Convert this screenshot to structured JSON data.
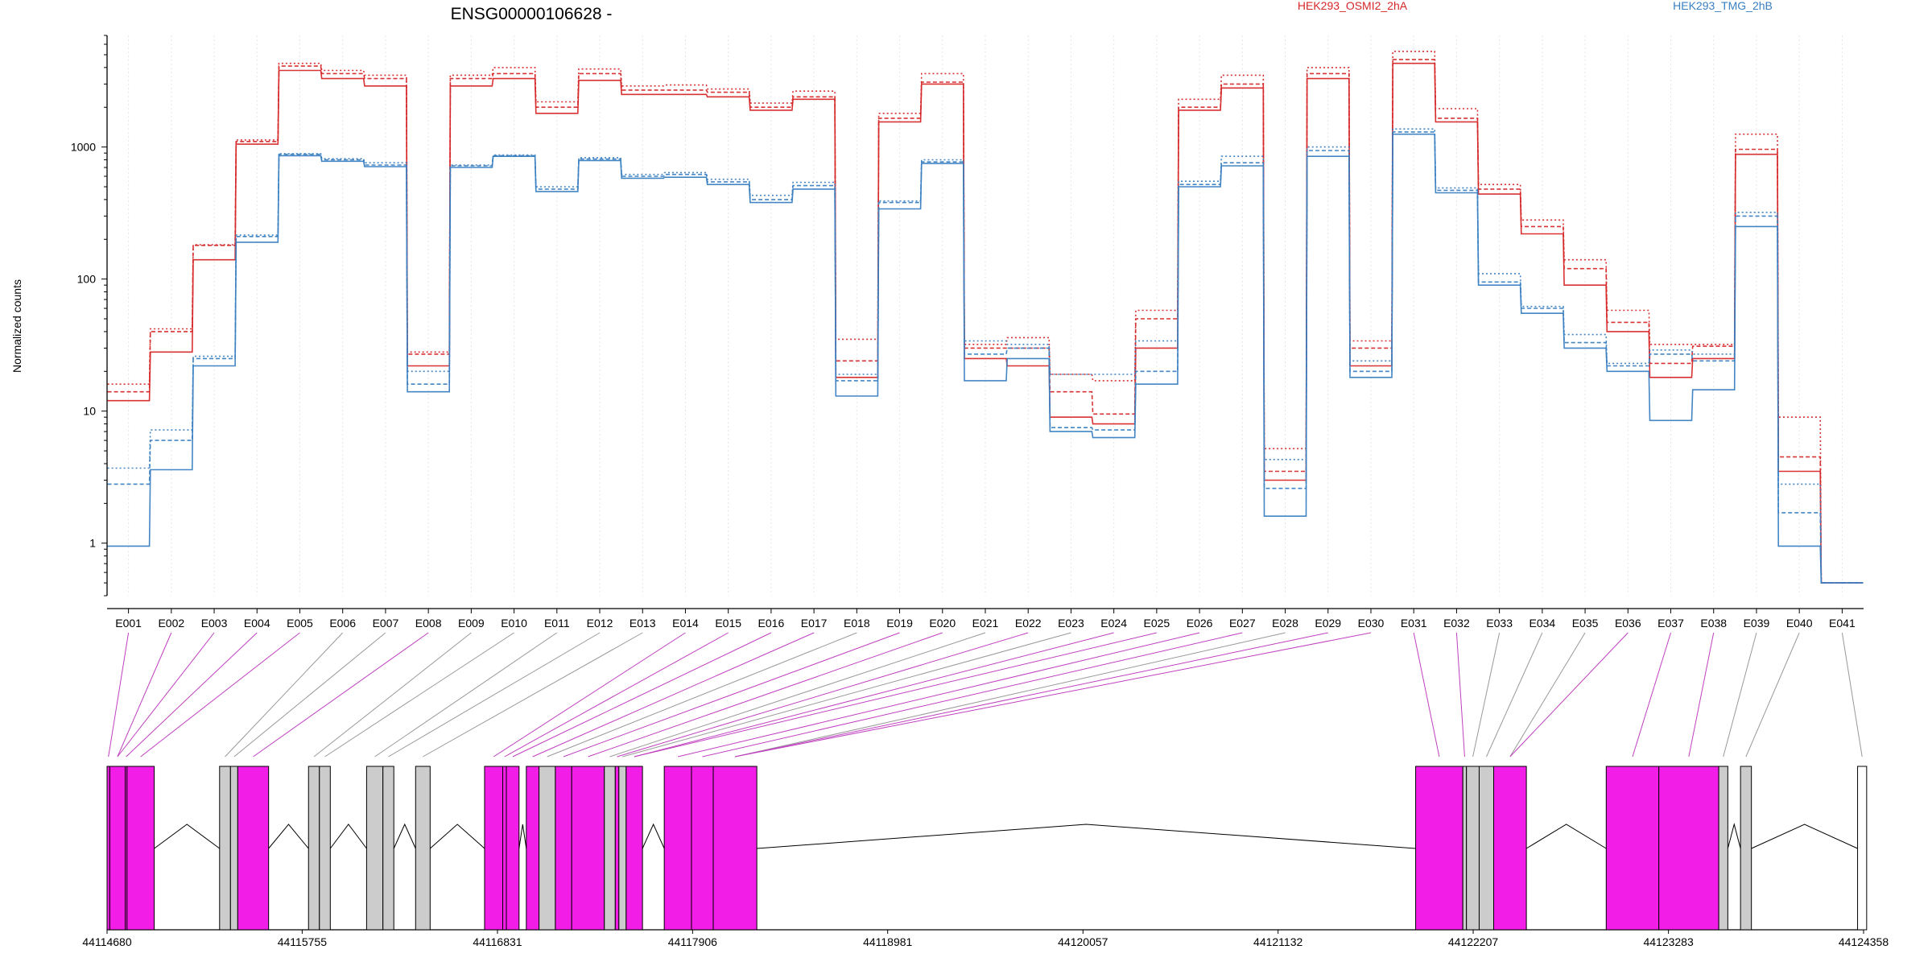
{
  "chart_data": {
    "type": "line",
    "title": "ENSG00000106628 -",
    "ylabel": "Normalized counts",
    "yscale": "log",
    "ylim": [
      0.4,
      7000
    ],
    "y_ticks": [
      1,
      10,
      100,
      1000
    ],
    "y_tick_labels": [
      "1",
      "10",
      "100",
      "1000"
    ],
    "grid": "vertical dotted at exon centers",
    "legend": [
      {
        "name": "HEK293_OSMI2_2hA",
        "color": "#d62728",
        "placement": "top-center"
      },
      {
        "name": "HEK293_TMG_2hB",
        "color": "#3a7fc1",
        "placement": "top-right"
      }
    ],
    "categories": [
      "E001",
      "E002",
      "E003",
      "E004",
      "E005",
      "E006",
      "E007",
      "E008",
      "E009",
      "E010",
      "E011",
      "E012",
      "E013",
      "E014",
      "E015",
      "E016",
      "E017",
      "E018",
      "E019",
      "E020",
      "E021",
      "E022",
      "E023",
      "E024",
      "E025",
      "E026",
      "E027",
      "E028",
      "E029",
      "E030",
      "E031",
      "E032",
      "E033",
      "E034",
      "E035",
      "E036",
      "E037",
      "E038",
      "E039",
      "E040",
      "E041"
    ],
    "series": [
      {
        "name": "HEK293_OSMI2_2hA",
        "color": "#d62728",
        "values": [
          [
            12,
            14,
            16
          ],
          [
            28,
            40,
            42
          ],
          [
            140,
            180,
            182
          ],
          [
            1050,
            1100,
            1130
          ],
          [
            3800,
            4100,
            4300
          ],
          [
            3300,
            3600,
            3800
          ],
          [
            2900,
            3300,
            3500
          ],
          [
            22,
            27,
            28
          ],
          [
            2900,
            3300,
            3500
          ],
          [
            3300,
            3600,
            4000
          ],
          [
            1800,
            2000,
            2200
          ],
          [
            3200,
            3600,
            3900
          ],
          [
            2500,
            2700,
            2900
          ],
          [
            2500,
            2700,
            2950
          ],
          [
            2400,
            2600,
            2750
          ],
          [
            1900,
            2000,
            2150
          ],
          [
            2300,
            2400,
            2650
          ],
          [
            18,
            24,
            35
          ],
          [
            1550,
            1650,
            1800
          ],
          [
            3000,
            3100,
            3600
          ],
          [
            25,
            30,
            32
          ],
          [
            22,
            30,
            36
          ],
          [
            9,
            14,
            19
          ],
          [
            8,
            9.5,
            17
          ],
          [
            30,
            50,
            58
          ],
          [
            1900,
            2000,
            2300
          ],
          [
            2800,
            3000,
            3500
          ],
          [
            3,
            3.5,
            5.2
          ],
          [
            3300,
            3600,
            4000
          ],
          [
            22,
            30,
            34
          ],
          [
            4300,
            4600,
            5300
          ],
          [
            1550,
            1650,
            1950
          ],
          [
            440,
            480,
            520
          ],
          [
            220,
            250,
            280
          ],
          [
            90,
            120,
            140
          ],
          [
            40,
            47,
            58
          ],
          [
            18,
            23,
            32
          ],
          [
            25,
            31,
            32
          ],
          [
            880,
            960,
            1250
          ],
          [
            3.5,
            4.5,
            9
          ],
          [
            0.5,
            0.5,
            0.5
          ]
        ]
      },
      {
        "name": "HEK293_TMG_2hB",
        "color": "#3a7fc1",
        "values": [
          [
            0.95,
            2.8,
            3.7
          ],
          [
            3.6,
            6,
            7.2
          ],
          [
            22,
            25,
            26
          ],
          [
            190,
            210,
            215
          ],
          [
            860,
            880,
            890
          ],
          [
            780,
            800,
            815
          ],
          [
            710,
            730,
            760
          ],
          [
            14,
            16,
            20
          ],
          [
            700,
            720,
            730
          ],
          [
            850,
            860,
            870
          ],
          [
            460,
            480,
            500
          ],
          [
            790,
            810,
            830
          ],
          [
            580,
            600,
            620
          ],
          [
            590,
            620,
            640
          ],
          [
            520,
            545,
            570
          ],
          [
            380,
            400,
            430
          ],
          [
            480,
            510,
            540
          ],
          [
            13,
            17,
            19
          ],
          [
            340,
            380,
            390
          ],
          [
            750,
            770,
            800
          ],
          [
            17,
            27,
            34
          ],
          [
            25,
            30,
            32
          ],
          [
            7,
            7.5,
            19
          ],
          [
            6.3,
            7.2,
            19
          ],
          [
            16,
            20,
            34
          ],
          [
            500,
            520,
            550
          ],
          [
            720,
            760,
            850
          ],
          [
            1.6,
            2.6,
            4.3
          ],
          [
            850,
            940,
            1000
          ],
          [
            18,
            20,
            24
          ],
          [
            1250,
            1300,
            1370
          ],
          [
            450,
            470,
            490
          ],
          [
            90,
            95,
            110
          ],
          [
            55,
            60,
            62
          ],
          [
            30,
            33,
            38
          ],
          [
            20,
            22,
            23
          ],
          [
            8.5,
            27,
            29
          ],
          [
            14.5,
            24,
            27
          ],
          [
            250,
            300,
            320
          ],
          [
            0.95,
            1.7,
            2.8
          ],
          [
            0.5,
            0.5,
            0.5
          ]
        ]
      }
    ],
    "gene_model": {
      "coordinate_ticks": [
        "44114680",
        "44115755",
        "44116831",
        "44117906",
        "44118981",
        "44120057",
        "44121132",
        "44122207",
        "44123283",
        "44124358"
      ],
      "exon_highlight_color": "#f21ee8",
      "exon_plain_color": "#cccccc",
      "connector_highlight_color": "#c040c0",
      "connector_plain_color": "#999999",
      "exons": [
        {
          "id": "E001",
          "start": 44114680,
          "end": 44114695,
          "highlighted": true
        },
        {
          "id": "E002",
          "start": 44114695,
          "end": 44114780,
          "highlighted": true
        },
        {
          "id": "E003",
          "start": 44114780,
          "end": 44114790,
          "highlighted": true
        },
        {
          "id": "E004",
          "start": 44114790,
          "end": 44114940,
          "highlighted": true
        },
        {
          "id": "E005",
          "start": 44115300,
          "end": 44115360,
          "highlighted": false
        },
        {
          "id": "E006",
          "start": 44115360,
          "end": 44115400,
          "highlighted": false
        },
        {
          "id": "E007",
          "start": 44115400,
          "end": 44115570,
          "highlighted": true
        },
        {
          "id": "E008",
          "start": 44115790,
          "end": 44115850,
          "highlighted": false
        },
        {
          "id": "E009",
          "start": 44115850,
          "end": 44115910,
          "highlighted": false
        },
        {
          "id": "E010",
          "start": 44116110,
          "end": 44116200,
          "highlighted": false
        },
        {
          "id": "E011",
          "start": 44116200,
          "end": 44116260,
          "highlighted": false
        },
        {
          "id": "E012",
          "start": 44116380,
          "end": 44116460,
          "highlighted": false
        },
        {
          "id": "E013",
          "start": 44116760,
          "end": 44116860,
          "highlighted": true
        },
        {
          "id": "E014",
          "start": 44116860,
          "end": 44116880,
          "highlighted": true
        },
        {
          "id": "E015",
          "start": 44116880,
          "end": 44116950,
          "highlighted": true
        },
        {
          "id": "E016",
          "start": 44116990,
          "end": 44117060,
          "highlighted": true
        },
        {
          "id": "E017",
          "start": 44117060,
          "end": 44117150,
          "highlighted": false
        },
        {
          "id": "E018",
          "start": 44117150,
          "end": 44117240,
          "highlighted": true
        },
        {
          "id": "E019",
          "start": 44117240,
          "end": 44117420,
          "highlighted": true
        },
        {
          "id": "E020",
          "start": 44117420,
          "end": 44117480,
          "highlighted": false
        },
        {
          "id": "E021",
          "start": 44117480,
          "end": 44117500,
          "highlighted": true
        },
        {
          "id": "E022",
          "start": 44117500,
          "end": 44117540,
          "highlighted": false
        },
        {
          "id": "E023",
          "start": 44117540,
          "end": 44117630,
          "highlighted": true
        },
        {
          "id": "E024",
          "start": 44117750,
          "end": 44117900,
          "highlighted": true
        },
        {
          "id": "E025",
          "start": 44117900,
          "end": 44118020,
          "highlighted": true
        },
        {
          "id": "E026",
          "start": 44118020,
          "end": 44118260,
          "highlighted": true
        },
        {
          "id": "E027",
          "start": 44121890,
          "end": 44122150,
          "highlighted": true
        },
        {
          "id": "E028",
          "start": 44122150,
          "end": 44122170,
          "highlighted": false
        },
        {
          "id": "E029",
          "start": 44122170,
          "end": 44122240,
          "highlighted": false
        },
        {
          "id": "E030",
          "start": 44122240,
          "end": 44122320,
          "highlighted": false
        },
        {
          "id": "E031",
          "start": 44122320,
          "end": 44122500,
          "highlighted": true
        },
        {
          "id": "E032",
          "start": 44122940,
          "end": 44123230,
          "highlighted": true
        },
        {
          "id": "E033",
          "start": 44123230,
          "end": 44123560,
          "highlighted": true
        },
        {
          "id": "E034",
          "start": 44123560,
          "end": 44123610,
          "highlighted": false
        },
        {
          "id": "E035",
          "start": 44123680,
          "end": 44123740,
          "highlighted": false
        },
        {
          "id": "E036",
          "start": 44124325,
          "end": 44124375,
          "highlighted": false
        }
      ],
      "connectors": [
        {
          "label": "E001",
          "exon": 0,
          "highlighted": true
        },
        {
          "label": "E002",
          "exon": 1,
          "highlighted": true
        },
        {
          "label": "E003",
          "exon": 1,
          "highlighted": true
        },
        {
          "label": "E004",
          "exon": 2,
          "highlighted": true
        },
        {
          "label": "E005",
          "exon": 3,
          "highlighted": true
        },
        {
          "label": "E006",
          "exon": 4,
          "highlighted": false
        },
        {
          "label": "E007",
          "exon": 5,
          "highlighted": false
        },
        {
          "label": "E008",
          "exon": 6,
          "highlighted": true
        },
        {
          "label": "E009",
          "exon": 7,
          "highlighted": false
        },
        {
          "label": "E010",
          "exon": 8,
          "highlighted": false
        },
        {
          "label": "E011",
          "exon": 9,
          "highlighted": false
        },
        {
          "label": "E012",
          "exon": 10,
          "highlighted": false
        },
        {
          "label": "E013",
          "exon": 11,
          "highlighted": false
        },
        {
          "label": "E014",
          "exon": 12,
          "highlighted": true
        },
        {
          "label": "E015",
          "exon": 13,
          "highlighted": true
        },
        {
          "label": "E016",
          "exon": 14,
          "highlighted": true
        },
        {
          "label": "E017",
          "exon": 15,
          "highlighted": true
        },
        {
          "label": "E018",
          "exon": 16,
          "highlighted": false
        },
        {
          "label": "E019",
          "exon": 17,
          "highlighted": true
        },
        {
          "label": "E020",
          "exon": 18,
          "highlighted": true
        },
        {
          "label": "E021",
          "exon": 19,
          "highlighted": false
        },
        {
          "label": "E022",
          "exon": 20,
          "highlighted": true
        },
        {
          "label": "E023",
          "exon": 21,
          "highlighted": false
        },
        {
          "label": "E024",
          "exon": 22,
          "highlighted": true
        },
        {
          "label": "E025",
          "exon": 22,
          "highlighted": true
        },
        {
          "label": "E026",
          "exon": 23,
          "highlighted": true
        },
        {
          "label": "E027",
          "exon": 24,
          "highlighted": true
        },
        {
          "label": "E028",
          "exon": 25,
          "highlighted": false
        },
        {
          "label": "E029",
          "exon": 25,
          "highlighted": true
        },
        {
          "label": "E030",
          "exon": 25,
          "highlighted": true
        },
        {
          "label": "E031",
          "exon": 26,
          "highlighted": true
        },
        {
          "label": "E032",
          "exon": 27,
          "highlighted": true
        },
        {
          "label": "E033",
          "exon": 28,
          "highlighted": false
        },
        {
          "label": "E034",
          "exon": 29,
          "highlighted": false
        },
        {
          "label": "E035",
          "exon": 30,
          "highlighted": false
        },
        {
          "label": "E036",
          "exon": 30,
          "highlighted": true
        },
        {
          "label": "E037",
          "exon": 31,
          "highlighted": true
        },
        {
          "label": "E038",
          "exon": 32,
          "highlighted": true
        },
        {
          "label": "E039",
          "exon": 33,
          "highlighted": false
        },
        {
          "label": "E040",
          "exon": 34,
          "highlighted": false
        },
        {
          "label": "E041",
          "exon": 35,
          "highlighted": false
        }
      ]
    }
  }
}
